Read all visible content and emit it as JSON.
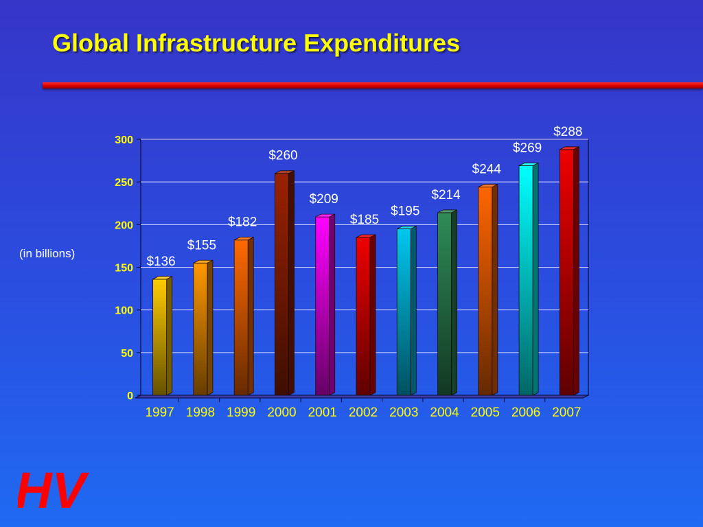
{
  "slide": {
    "title": "Global Infrastructure Expenditures",
    "unit_label": "(in billions)",
    "logo_text": "HV"
  },
  "colors": {
    "title": "#ffff00",
    "rule": "#e00000",
    "axis_text": "#ffff00",
    "value_text": "#ffffff",
    "logo": "#ff0000"
  },
  "chart_data": {
    "type": "bar",
    "title": "",
    "xlabel": "",
    "ylabel": "(in billions)",
    "ylim": [
      0,
      300
    ],
    "yticks": [
      0,
      50,
      100,
      150,
      200,
      250,
      300
    ],
    "grid": true,
    "categories": [
      "1997",
      "1998",
      "1999",
      "2000",
      "2001",
      "2002",
      "2003",
      "2004",
      "2005",
      "2006",
      "2007"
    ],
    "values": [
      136,
      155,
      182,
      260,
      209,
      185,
      195,
      214,
      244,
      269,
      288
    ],
    "labels": [
      "$136",
      "$155",
      "$182",
      "$260",
      "$209",
      "$185",
      "$195",
      "$214",
      "$244",
      "$269",
      "$288"
    ],
    "bar_colors": [
      "#ffcc00",
      "#ff9900",
      "#ff6a00",
      "#992200",
      "#ff00ff",
      "#ee0000",
      "#00c8f0",
      "#2e8b57",
      "#ff6600",
      "#00ffff",
      "#ee0000"
    ]
  }
}
